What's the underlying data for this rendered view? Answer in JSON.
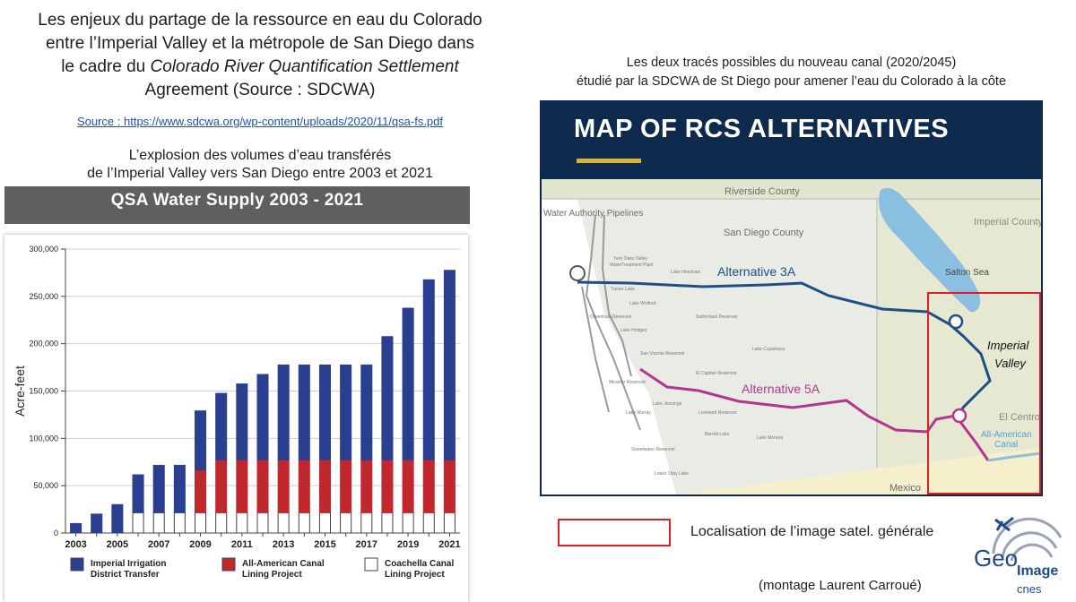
{
  "main_title": {
    "line1": "Les enjeux du partage de la ressource en eau du Colorado",
    "line2": "entre l’Imperial Valley et la métropole de San Diego dans",
    "line3_prefix": "le cadre du ",
    "line3_italic": "Colorado River Quantification Settlement",
    "line4": "Agreement (Source : SDCWA)"
  },
  "source_link": "Source : https://www.sdcwa.org/wp-content/uploads/2020/11/qsa-fs.pdf",
  "chart_subtitle": {
    "line1": "L’explosion des volumes d’eau transférés",
    "line2": "de l’Imperial Valley vers San Diego entre 2003 et 2021"
  },
  "chart_banner": "QSA Water Supply 2003 - 2021",
  "chart_data": {
    "type": "bar",
    "stacked": true,
    "title": "QSA Water Supply 2003 - 2021",
    "ylabel": "Acre-feet",
    "xlabel": "",
    "ylim": [
      0,
      300000
    ],
    "yticks": [
      0,
      50000,
      100000,
      150000,
      200000,
      250000,
      300000
    ],
    "ytick_labels": [
      "0",
      "50,000",
      "100,000",
      "150,000",
      "200,000",
      "250,000",
      "300,000"
    ],
    "categories": [
      "2003",
      "2004",
      "2005",
      "2006",
      "2007",
      "2008",
      "2009",
      "2010",
      "2011",
      "2012",
      "2013",
      "2014",
      "2015",
      "2016",
      "2017",
      "2018",
      "2019",
      "2020",
      "2021"
    ],
    "xtick_labels": [
      "2003",
      "",
      "2005",
      "",
      "2007",
      "",
      "2009",
      "",
      "2011",
      "",
      "2013",
      "",
      "2015",
      "",
      "2017",
      "",
      "2019",
      "",
      "2021"
    ],
    "series": [
      {
        "name": "Coachella Canal Lining Project",
        "color": "#ffffff",
        "values": [
          0,
          0,
          0,
          21500,
          21500,
          21500,
          21500,
          21500,
          21500,
          21500,
          21500,
          21500,
          21500,
          21500,
          21500,
          21500,
          21500,
          21500,
          21500
        ]
      },
      {
        "name": "All-American Canal Lining Project",
        "color": "#c0282e",
        "values": [
          0,
          0,
          0,
          0,
          0,
          0,
          45000,
          56000,
          56000,
          56000,
          56000,
          56000,
          56000,
          56000,
          56000,
          56000,
          56000,
          56000,
          56000
        ]
      },
      {
        "name": "Imperial Irrigation District Transfer",
        "color": "#2a3f8f",
        "values": [
          10000,
          20000,
          30000,
          40000,
          50000,
          50000,
          62500,
          70000,
          80000,
          90000,
          100000,
          100000,
          100000,
          100000,
          100000,
          130000,
          160000,
          190000,
          200000
        ]
      }
    ],
    "legend": [
      {
        "line1": "Imperial Irrigation",
        "line2": "District Transfer",
        "color": "#2a3f8f"
      },
      {
        "line1": "All-American Canal",
        "line2": "Lining Project",
        "color": "#c0282e"
      },
      {
        "line1": "Coachella Canal",
        "line2": "Lining Project",
        "color": "#ffffff"
      }
    ],
    "legend_placement": "bottom",
    "grid": "horizontal"
  },
  "map": {
    "caption_line1": "Les deux tracés possibles du nouveau canal (2020/2045)",
    "caption_line2": "étudié par la SDCWA de St Diego pour amener l’eau du Colorado à la côte",
    "title": "MAP OF RCS ALTERNATIVES",
    "labels": {
      "riverside": "Riverside County",
      "pipelines": "Water Authority Pipelines",
      "san_diego_county": "San Diego County",
      "imperial_county": "Imperial County",
      "salton_sea": "Salton Sea",
      "alt3a": "Alternative 3A",
      "alt5a": "Alternative 5A",
      "imperial_valley_1": "Imperial",
      "imperial_valley_2": "Valley",
      "el_centro": "El Centro",
      "all_american_1": "All-American",
      "all_american_2": "Canal",
      "mexico": "Mexico",
      "twin_oaks_1": "Twin Oaks Valley",
      "twin_oaks_2": "WaterTreatment Plant",
      "lake_henshaw": "Lake Henshaw",
      "turner_lake": "Turner Lake",
      "lake_wolford": "Lake Wolford",
      "olivenhain": "Olivenhain Reservoir",
      "lake_hodges": "Lake Hodges",
      "sutherland": "Sutherland Reservoir",
      "lake_cuyamaca": "Lake Cuyamaca",
      "san_vicente": "San Vicente Reservoir",
      "el_capitan": "El Capitan Reservoir",
      "miramar": "Miramar Reservoir",
      "lake_jennings": "Lake Jennings",
      "loveland": "Loveland Reservoir",
      "lake_murray": "Lake Murray",
      "barrett": "Barrett Lake",
      "lake_morena": "Lake Morena",
      "sweetwater": "Sweetwater Reservoir",
      "lower_otay": "Lower Otay Lake"
    },
    "colors": {
      "alt3a": "#1d4f86",
      "alt5a": "#b4358f",
      "salton": "#8bbfe2",
      "frame": "#0e2a4d",
      "highlight": "#e21c23"
    }
  },
  "legend_text": "Localisation de l’image satel. générale",
  "credit": "(montage Laurent Carroué)",
  "logo": {
    "name": "Geo",
    "suffix": "Image",
    "sub": "cnes"
  }
}
